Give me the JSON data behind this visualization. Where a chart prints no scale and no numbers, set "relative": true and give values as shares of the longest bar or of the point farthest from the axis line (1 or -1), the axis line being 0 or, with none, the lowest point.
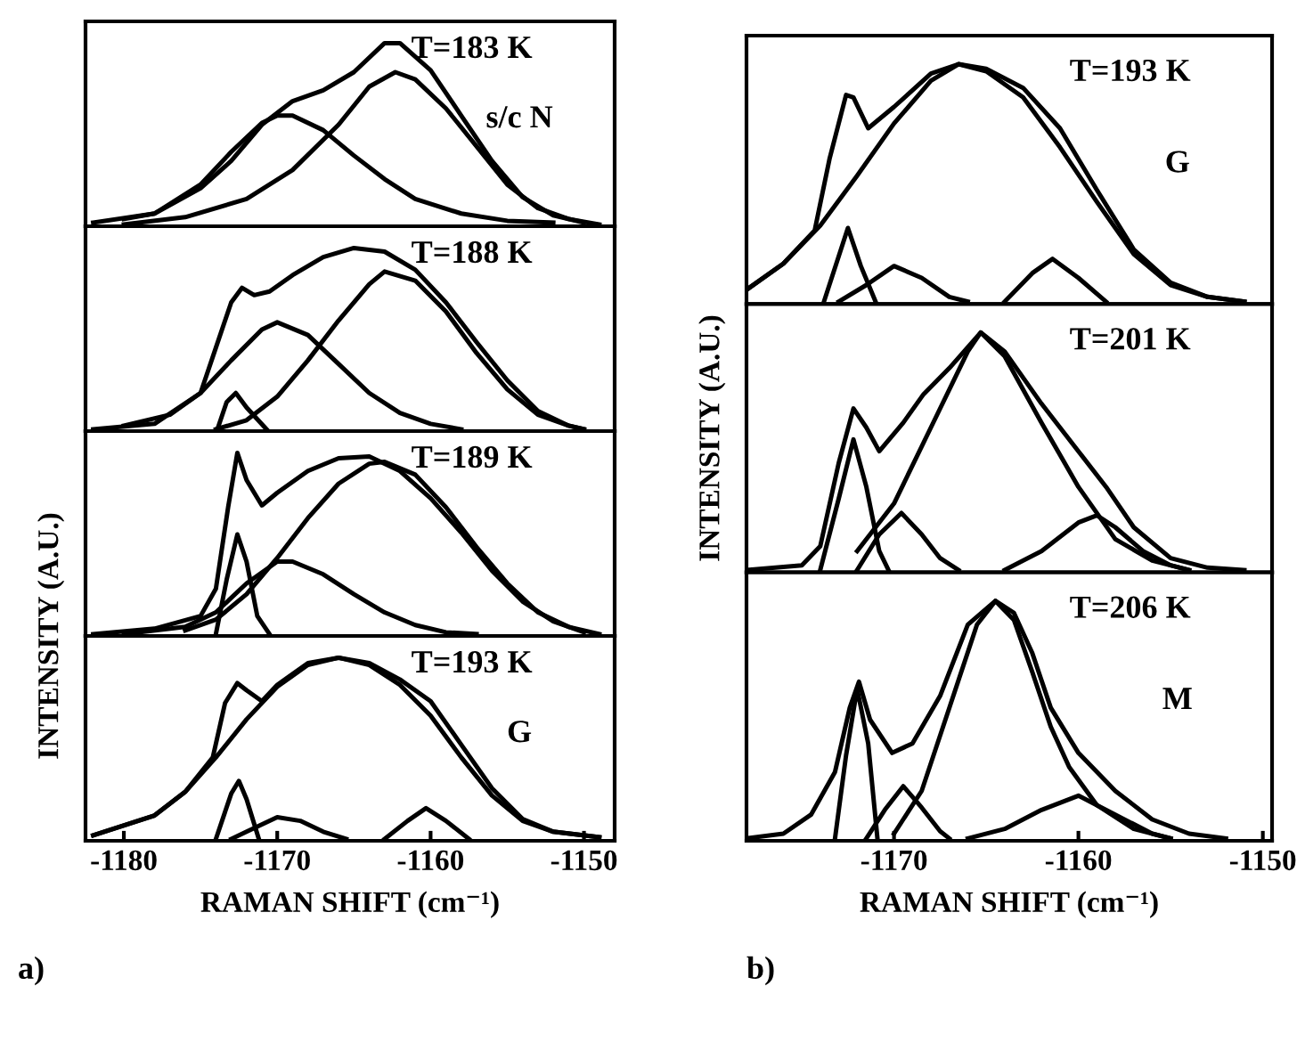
{
  "chart_data": [
    {
      "type": "line",
      "relative": true,
      "xlim": [
        -1182.5,
        -1148
      ],
      "tick_labels": false,
      "annotations": [
        "T=183 K",
        "s/c N"
      ],
      "series": [
        {
          "color": "#000000",
          "x": [
            -1182,
            -1178,
            -1175,
            -1173,
            -1171,
            -1169,
            -1167,
            -1165,
            -1163,
            -1162,
            -1160,
            -1158,
            -1156,
            -1154,
            -1152,
            -1150
          ],
          "values": [
            0.01,
            0.06,
            0.2,
            0.35,
            0.55,
            0.68,
            0.74,
            0.84,
            1.0,
            1.0,
            0.85,
            0.6,
            0.35,
            0.15,
            0.05,
            0.01
          ]
        },
        {
          "color": "#000000",
          "x": [
            -1180,
            -1178,
            -1175,
            -1173,
            -1171,
            -1170,
            -1169,
            -1167,
            -1165,
            -1163,
            -1161,
            -1158,
            -1155,
            -1152
          ],
          "values": [
            0.03,
            0.06,
            0.22,
            0.4,
            0.56,
            0.6,
            0.6,
            0.52,
            0.38,
            0.25,
            0.14,
            0.06,
            0.02,
            0.01
          ]
        },
        {
          "color": "#000000",
          "x": [
            -1180,
            -1176,
            -1172,
            -1169,
            -1166,
            -1164,
            -1162.3,
            -1161,
            -1159,
            -1157,
            -1155,
            -1153,
            -1151,
            -1149
          ],
          "values": [
            0,
            0.04,
            0.14,
            0.3,
            0.55,
            0.76,
            0.84,
            0.8,
            0.64,
            0.43,
            0.22,
            0.09,
            0.03,
            0
          ]
        }
      ]
    },
    {
      "type": "line",
      "relative": true,
      "xlim": [
        -1182.5,
        -1148
      ],
      "tick_labels": false,
      "annotations": [
        "T=188 K"
      ],
      "series": [
        {
          "color": "#000000",
          "x": [
            -1182,
            -1178,
            -1175,
            -1174,
            -1173,
            -1172.3,
            -1171.5,
            -1170.5,
            -1169,
            -1167,
            -1165,
            -1163,
            -1161,
            -1159,
            -1157,
            -1155,
            -1153,
            -1151,
            -1150
          ],
          "values": [
            0,
            0.03,
            0.2,
            0.45,
            0.7,
            0.78,
            0.74,
            0.76,
            0.85,
            0.95,
            1.0,
            0.98,
            0.88,
            0.7,
            0.48,
            0.27,
            0.1,
            0.02,
            0
          ]
        },
        {
          "color": "#000000",
          "x": [
            -1180,
            -1177,
            -1175,
            -1173,
            -1171,
            -1170,
            -1168,
            -1166,
            -1164,
            -1162,
            -1160,
            -1158
          ],
          "values": [
            0.02,
            0.08,
            0.2,
            0.38,
            0.55,
            0.59,
            0.52,
            0.36,
            0.2,
            0.09,
            0.03,
            0
          ]
        },
        {
          "color": "#000000",
          "x": [
            -1174,
            -1172,
            -1170,
            -1168,
            -1166,
            -1164,
            -1163,
            -1161,
            -1159,
            -1157,
            -1155,
            -1153,
            -1151,
            -1150
          ],
          "values": [
            0,
            0.05,
            0.18,
            0.38,
            0.6,
            0.8,
            0.87,
            0.82,
            0.65,
            0.42,
            0.22,
            0.08,
            0.02,
            0
          ]
        },
        {
          "color": "#000000",
          "x": [
            -1173.9,
            -1173.3,
            -1172.7,
            -1172,
            -1170.7
          ],
          "values": [
            0,
            0.15,
            0.2,
            0.12,
            0
          ]
        }
      ]
    },
    {
      "type": "line",
      "relative": true,
      "xlim": [
        -1182.5,
        -1148
      ],
      "tick_labels": false,
      "annotations": [
        "T=189 K"
      ],
      "series": [
        {
          "color": "#000000",
          "x": [
            -1182,
            -1178,
            -1175,
            -1174,
            -1173.2,
            -1172.6,
            -1172,
            -1171,
            -1170,
            -1168,
            -1166,
            -1164,
            -1162,
            -1160,
            -1158,
            -1156,
            -1154,
            -1152,
            -1150
          ],
          "values": [
            0,
            0.03,
            0.1,
            0.25,
            0.7,
            1.0,
            0.85,
            0.71,
            0.78,
            0.9,
            0.97,
            0.98,
            0.9,
            0.75,
            0.56,
            0.35,
            0.18,
            0.07,
            0.01
          ]
        },
        {
          "color": "#000000",
          "x": [
            -1174,
            -1173.3,
            -1172.6,
            -1172,
            -1171.3,
            -1170.5
          ],
          "values": [
            0,
            0.3,
            0.55,
            0.4,
            0.1,
            0
          ]
        },
        {
          "color": "#000000",
          "x": [
            -1180,
            -1176,
            -1174,
            -1172,
            -1170,
            -1169,
            -1167,
            -1165,
            -1163,
            -1161,
            -1159,
            -1157
          ],
          "values": [
            0,
            0.04,
            0.12,
            0.28,
            0.4,
            0.4,
            0.33,
            0.22,
            0.12,
            0.05,
            0.01,
            0
          ]
        },
        {
          "color": "#000000",
          "x": [
            -1176,
            -1174,
            -1172,
            -1170,
            -1168,
            -1166,
            -1164,
            -1163,
            -1161,
            -1159,
            -1157,
            -1155,
            -1153,
            -1151,
            -1149
          ],
          "values": [
            0.02,
            0.08,
            0.22,
            0.42,
            0.64,
            0.83,
            0.94,
            0.95,
            0.88,
            0.7,
            0.48,
            0.28,
            0.12,
            0.04,
            0
          ]
        }
      ]
    },
    {
      "type": "line",
      "relative": true,
      "xlim": [
        -1182.5,
        -1148
      ],
      "xticks": [
        -1180,
        -1170,
        -1160,
        -1150
      ],
      "tick_labels": "x",
      "xlabel": "RAMAN SHIFT (cm⁻¹)",
      "ylabel": "INTENSITY (A.U.)",
      "annotations": [
        "T=193 K",
        "G",
        "a)"
      ],
      "series": [
        {
          "color": "#000000",
          "x": [
            -1182,
            -1178,
            -1176,
            -1174.2,
            -1173.4,
            -1172.6,
            -1172,
            -1171,
            -1170,
            -1168,
            -1166,
            -1164,
            -1162,
            -1160,
            -1158,
            -1156,
            -1154,
            -1152,
            -1149
          ],
          "values": [
            0.02,
            0.13,
            0.26,
            0.45,
            0.75,
            0.86,
            0.82,
            0.76,
            0.85,
            0.97,
            1.0,
            0.97,
            0.88,
            0.76,
            0.52,
            0.28,
            0.11,
            0.04,
            0.01
          ]
        },
        {
          "color": "#000000",
          "x": [
            -1182,
            -1178,
            -1176,
            -1174,
            -1172,
            -1170,
            -1168,
            -1166,
            -1164,
            -1162,
            -1160,
            -1158,
            -1156,
            -1154,
            -1152,
            -1149
          ],
          "values": [
            0.02,
            0.13,
            0.26,
            0.45,
            0.66,
            0.84,
            0.96,
            1.0,
            0.96,
            0.85,
            0.68,
            0.45,
            0.24,
            0.1,
            0.04,
            0.01
          ]
        },
        {
          "color": "#000000",
          "x": [
            -1174,
            -1173,
            -1172.5,
            -1172,
            -1171.2
          ],
          "values": [
            0,
            0.25,
            0.32,
            0.22,
            0
          ]
        },
        {
          "color": "#000000",
          "x": [
            -1173,
            -1172,
            -1170,
            -1168.5,
            -1167,
            -1165.5
          ],
          "values": [
            0,
            0.04,
            0.12,
            0.1,
            0.04,
            0
          ]
        },
        {
          "color": "#000000",
          "x": [
            -1163,
            -1161.5,
            -1160.3,
            -1159,
            -1157.5
          ],
          "values": [
            0,
            0.1,
            0.17,
            0.1,
            0
          ]
        }
      ]
    },
    {
      "type": "line",
      "relative": true,
      "xlim": [
        -1178,
        -1149.5
      ],
      "tick_labels": false,
      "annotations": [
        "T=193 K",
        "G"
      ],
      "series": [
        {
          "color": "#000000",
          "x": [
            -1178,
            -1176,
            -1174.3,
            -1173.5,
            -1172.6,
            -1172.2,
            -1171.4,
            -1170,
            -1168,
            -1166.5,
            -1165,
            -1163,
            -1161,
            -1159,
            -1157,
            -1155,
            -1153,
            -1151
          ],
          "values": [
            0.05,
            0.16,
            0.3,
            0.6,
            0.87,
            0.86,
            0.73,
            0.82,
            0.96,
            1.0,
            0.98,
            0.9,
            0.73,
            0.47,
            0.22,
            0.08,
            0.02,
            0
          ]
        },
        {
          "color": "#000000",
          "x": [
            -1178,
            -1176,
            -1174,
            -1172,
            -1170,
            -1168,
            -1166.5,
            -1165,
            -1163,
            -1161,
            -1159,
            -1157,
            -1155,
            -1153,
            -1151
          ],
          "values": [
            0.05,
            0.16,
            0.32,
            0.53,
            0.75,
            0.93,
            1.0,
            0.97,
            0.86,
            0.65,
            0.42,
            0.2,
            0.07,
            0.02,
            0
          ]
        },
        {
          "color": "#000000",
          "x": [
            -1173.8,
            -1172.5,
            -1171.8,
            -1171
          ],
          "values": [
            0,
            0.31,
            0.15,
            0
          ]
        },
        {
          "color": "#000000",
          "x": [
            -1173,
            -1171.5,
            -1170,
            -1168.5,
            -1167,
            -1166
          ],
          "values": [
            0,
            0.07,
            0.15,
            0.1,
            0.02,
            0
          ]
        },
        {
          "color": "#000000",
          "x": [
            -1164,
            -1162.5,
            -1161.4,
            -1160,
            -1158.5
          ],
          "values": [
            0,
            0.12,
            0.18,
            0.1,
            0
          ]
        }
      ]
    },
    {
      "type": "line",
      "relative": true,
      "xlim": [
        -1178,
        -1149.5
      ],
      "tick_labels": false,
      "ylabel": "INTENSITY (A.U.)",
      "annotations": [
        "T=201 K"
      ],
      "series": [
        {
          "color": "#000000",
          "x": [
            -1178,
            -1175,
            -1174,
            -1173,
            -1172.2,
            -1171.5,
            -1170.8,
            -1169.5,
            -1168.4,
            -1167,
            -1165.3,
            -1164,
            -1162,
            -1160,
            -1158.5,
            -1157,
            -1155,
            -1153,
            -1151
          ],
          "values": [
            0,
            0.02,
            0.1,
            0.45,
            0.68,
            0.6,
            0.5,
            0.62,
            0.74,
            0.85,
            1.0,
            0.92,
            0.7,
            0.5,
            0.35,
            0.18,
            0.05,
            0.01,
            0
          ]
        },
        {
          "color": "#000000",
          "x": [
            -1172,
            -1170,
            -1168,
            -1166,
            -1165.3,
            -1164,
            -1162,
            -1160,
            -1158,
            -1156,
            -1154
          ],
          "values": [
            0.08,
            0.28,
            0.6,
            0.92,
            1.0,
            0.9,
            0.62,
            0.35,
            0.13,
            0.04,
            0
          ]
        },
        {
          "color": "#000000",
          "x": [
            -1174,
            -1173,
            -1172.2,
            -1171.5,
            -1170.8,
            -1170.3
          ],
          "values": [
            0,
            0.3,
            0.55,
            0.35,
            0.08,
            0
          ]
        },
        {
          "color": "#000000",
          "x": [
            -1172,
            -1170.8,
            -1169.6,
            -1168.5,
            -1167.5,
            -1166.5
          ],
          "values": [
            0,
            0.15,
            0.24,
            0.15,
            0.05,
            0
          ]
        },
        {
          "color": "#000000",
          "x": [
            -1164,
            -1162,
            -1160,
            -1159,
            -1158,
            -1156.5,
            -1155,
            -1154
          ],
          "values": [
            0,
            0.08,
            0.2,
            0.23,
            0.18,
            0.08,
            0.02,
            0
          ]
        }
      ]
    },
    {
      "type": "line",
      "relative": true,
      "xlim": [
        -1178,
        -1149.5
      ],
      "xticks": [
        -1170,
        -1160,
        -1150
      ],
      "tick_labels": "x",
      "xlabel": "RAMAN SHIFT (cm⁻¹)",
      "annotations": [
        "T=206 K",
        "M",
        "b)"
      ],
      "series": [
        {
          "color": "#000000",
          "x": [
            -1178,
            -1176,
            -1174.5,
            -1173.2,
            -1172.4,
            -1171.9,
            -1171.3,
            -1170.1,
            -1169,
            -1167.5,
            -1166,
            -1164.5,
            -1163.5,
            -1162.5,
            -1161.5,
            -1160,
            -1158,
            -1156,
            -1154,
            -1152
          ],
          "values": [
            0,
            0.02,
            0.1,
            0.28,
            0.55,
            0.66,
            0.5,
            0.36,
            0.4,
            0.6,
            0.9,
            1.0,
            0.95,
            0.78,
            0.55,
            0.36,
            0.2,
            0.08,
            0.02,
            0
          ]
        },
        {
          "color": "#000000",
          "x": [
            -1170,
            -1168.5,
            -1167,
            -1165.5,
            -1164.5,
            -1163.5,
            -1162.5,
            -1161.5,
            -1160.5,
            -1159,
            -1157,
            -1155
          ],
          "values": [
            0.02,
            0.2,
            0.55,
            0.9,
            1.0,
            0.92,
            0.7,
            0.47,
            0.3,
            0.14,
            0.04,
            0
          ]
        },
        {
          "color": "#000000",
          "x": [
            -1173.2,
            -1172.6,
            -1172,
            -1171.4,
            -1170.9
          ],
          "values": [
            0,
            0.35,
            0.63,
            0.4,
            0
          ]
        },
        {
          "color": "#000000",
          "x": [
            -1171.5,
            -1170.5,
            -1169.5,
            -1168.5,
            -1167.5,
            -1167
          ],
          "values": [
            0,
            0.12,
            0.22,
            0.13,
            0.03,
            0
          ]
        },
        {
          "color": "#000000",
          "x": [
            -1166,
            -1164,
            -1162,
            -1160,
            -1158,
            -1156,
            -1155
          ],
          "values": [
            0,
            0.04,
            0.12,
            0.18,
            0.1,
            0.02,
            0
          ]
        }
      ]
    }
  ]
}
